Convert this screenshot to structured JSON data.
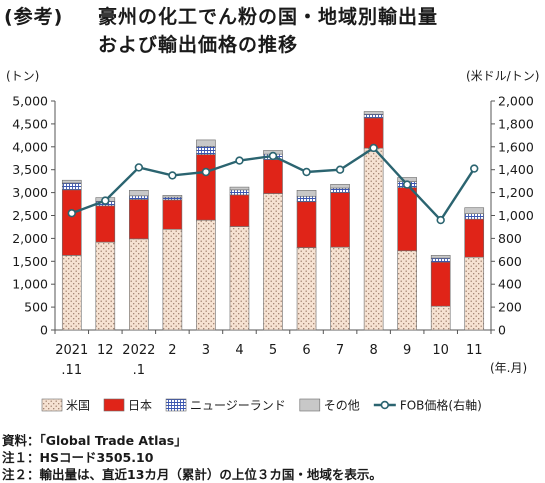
{
  "title_prefix": "(参考)",
  "title_line1": "豪州の化工でん粉の国・地域別輸出量",
  "title_line2": "および輸出価格の推移",
  "notes": [
    "資料：「Global Trade Atlas」",
    "注１：HSコード3505.10",
    "注２：輸出量は、直近13カ月（累計）の上位３カ国・地域を表示。"
  ],
  "chart_data": {
    "type": "bar",
    "stacked": true,
    "categories": [
      "2021\n.11",
      "12",
      "2022\n.1",
      "2",
      "3",
      "4",
      "5",
      "6",
      "7",
      "8",
      "9",
      "10",
      "11"
    ],
    "xlabel_right": "(年.月)",
    "ylabel_left": "(トン)",
    "ylabel_right": "(米ドル/トン)",
    "ylim_left": [
      0,
      5000
    ],
    "yticks_left": [
      0,
      500,
      1000,
      1500,
      2000,
      2500,
      3000,
      3500,
      4000,
      4500,
      5000
    ],
    "yticks_left_labels": [
      "0",
      "500",
      "1,000",
      "1,500",
      "2,000",
      "2,500",
      "3,000",
      "3,500",
      "4,000",
      "4,500",
      "5,000"
    ],
    "ylim_right": [
      0,
      2000
    ],
    "yticks_right": [
      0,
      200,
      400,
      600,
      800,
      1000,
      1200,
      1400,
      1600,
      1800,
      2000
    ],
    "yticks_right_labels": [
      "0",
      "200",
      "400",
      "600",
      "800",
      "1,000",
      "1,200",
      "1,400",
      "1,600",
      "1,800",
      "2,000"
    ],
    "series": [
      {
        "name": "米国",
        "color": "#f3d9c4",
        "pattern": "dots",
        "values": [
          1630,
          1920,
          1990,
          2200,
          2400,
          2260,
          2980,
          1800,
          1810,
          3970,
          1730,
          520,
          1590
        ]
      },
      {
        "name": "日本",
        "color": "#e02418",
        "values": [
          1430,
          790,
          860,
          640,
          1430,
          690,
          740,
          1000,
          1190,
          660,
          1380,
          960,
          830
        ]
      },
      {
        "name": "ニュージーランド",
        "color": "#3b56b0",
        "pattern": "grid",
        "values": [
          150,
          100,
          80,
          60,
          180,
          110,
          120,
          120,
          100,
          80,
          130,
          90,
          120
        ]
      },
      {
        "name": "その他",
        "color": "#c8c8c8",
        "values": [
          60,
          80,
          120,
          40,
          140,
          60,
          80,
          130,
          80,
          60,
          90,
          60,
          130
        ]
      },
      {
        "name": "FOB価格(右軸)",
        "type": "line",
        "axis": "right",
        "color": "#2b6470",
        "values": [
          1020,
          1130,
          1420,
          1350,
          1380,
          1480,
          1520,
          1380,
          1400,
          1590,
          1270,
          960,
          1410
        ]
      }
    ],
    "grid": false,
    "legend_position": "bottom"
  }
}
